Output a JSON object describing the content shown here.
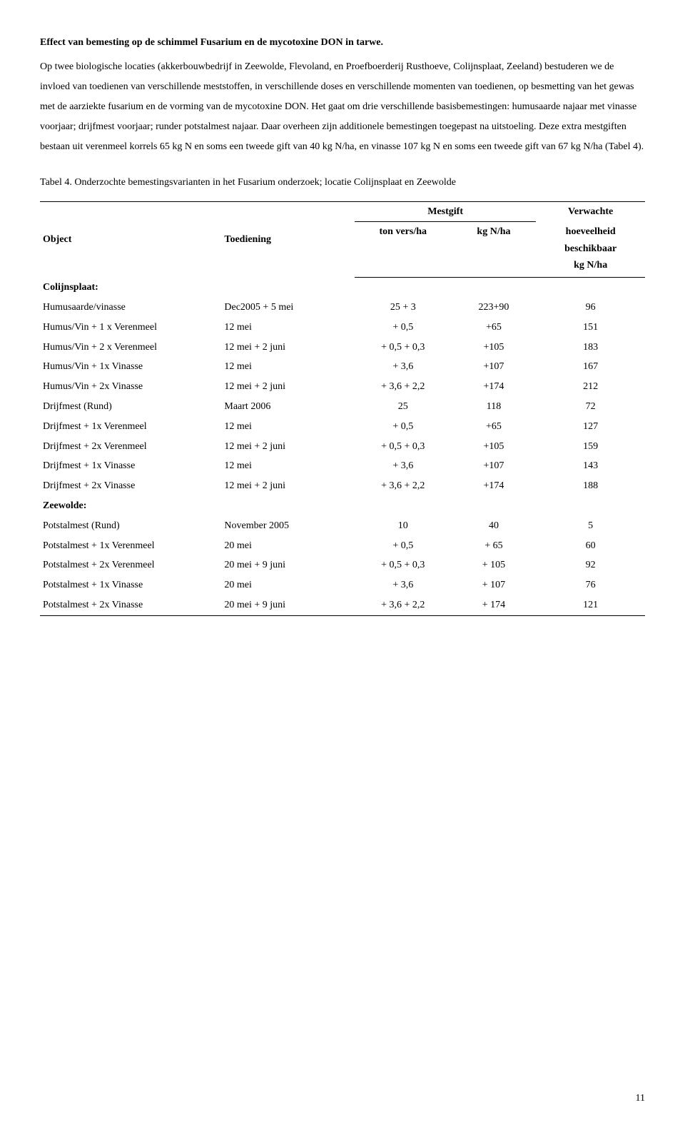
{
  "heading": "Effect van bemesting op de schimmel Fusarium en de mycotoxine DON in tarwe.",
  "body": "Op twee biologische locaties (akkerbouwbedrijf in Zeewolde, Flevoland, en Proefboerderij Rusthoeve, Colijnsplaat, Zeeland) bestuderen we de invloed van toedienen van verschillende meststoffen, in verschillende doses en verschillende momenten van toedienen, op besmetting van het gewas met de aarziekte fusarium en de vorming van de mycotoxine DON. Het gaat om drie verschillende basisbemestingen: humusaarde najaar met vinasse voorjaar; drijfmest voorjaar; runder potstalmest najaar. Daar overheen zijn additionele bemestingen toegepast na uitstoeling. Deze extra mestgiften bestaan uit verenmeel korrels 65 kg N en soms een tweede gift van 40 kg N/ha, en vinasse 107 kg N en soms een tweede gift van 67 kg N/ha (Tabel 4).",
  "table_caption": "Tabel 4. Onderzochte bemestingsvarianten in het Fusarium onderzoek; locatie Colijnsplaat en Zeewolde",
  "headers": {
    "object": "Object",
    "toediening": "Toediening",
    "mestgift": "Mestgift",
    "ton_vers": "ton vers/ha",
    "kg_n_ha": "kg N/ha",
    "verwachte": "Verwachte",
    "hoeveelheid": "hoeveelheid",
    "beschikbaar": "beschikbaar",
    "kg_n_ha2": "kg N/ha"
  },
  "sections": {
    "colijnsplaat": "Colijnsplaat:",
    "zeewolde": "Zeewolde:"
  },
  "rows_c": [
    {
      "obj": "Humusaarde/vinasse",
      "toed": "Dec2005 + 5 mei",
      "mest": "25 + 3",
      "kgn": "223+90",
      "verw": "96"
    },
    {
      "obj": "Humus/Vin + 1 x Verenmeel",
      "toed": "12 mei",
      "mest": "+ 0,5",
      "kgn": "+65",
      "verw": "151"
    },
    {
      "obj": "Humus/Vin + 2 x Verenmeel",
      "toed": "12 mei + 2 juni",
      "mest": "+ 0,5 + 0,3",
      "kgn": "+105",
      "verw": "183"
    },
    {
      "obj": "Humus/Vin + 1x Vinasse",
      "toed": "12 mei",
      "mest": "+ 3,6",
      "kgn": "+107",
      "verw": "167"
    },
    {
      "obj": "Humus/Vin + 2x Vinasse",
      "toed": "12 mei + 2 juni",
      "mest": "+ 3,6 + 2,2",
      "kgn": "+174",
      "verw": "212"
    },
    {
      "obj": "Drijfmest (Rund)",
      "toed": "Maart 2006",
      "mest": "25",
      "kgn": "118",
      "verw": "72"
    },
    {
      "obj": "Drijfmest +  1x Verenmeel",
      "toed": "12 mei",
      "mest": "+ 0,5",
      "kgn": "+65",
      "verw": "127"
    },
    {
      "obj": "Drijfmest + 2x Verenmeel",
      "toed": "12 mei + 2 juni",
      "mest": "+ 0,5 + 0,3",
      "kgn": "+105",
      "verw": "159"
    },
    {
      "obj": "Drijfmest + 1x Vinasse",
      "toed": "12 mei",
      "mest": "+ 3,6",
      "kgn": "+107",
      "verw": "143"
    },
    {
      "obj": "Drijfmest + 2x Vinasse",
      "toed": "12 mei + 2 juni",
      "mest": "+ 3,6 + 2,2",
      "kgn": "+174",
      "verw": "188"
    }
  ],
  "rows_z": [
    {
      "obj": "Potstalmest (Rund)",
      "toed": "November 2005",
      "mest": "10",
      "kgn": "40",
      "verw": "5"
    },
    {
      "obj": "Potstalmest + 1x Verenmeel",
      "toed": "20 mei",
      "mest": "+ 0,5",
      "kgn": "+ 65",
      "verw": "60"
    },
    {
      "obj": "Potstalmest + 2x Verenmeel",
      "toed": "20 mei + 9 juni",
      "mest": "+ 0,5 + 0,3",
      "kgn": "+ 105",
      "verw": "92"
    },
    {
      "obj": "Potstalmest + 1x Vinasse",
      "toed": "20 mei",
      "mest": "+ 3,6",
      "kgn": "+ 107",
      "verw": "76"
    },
    {
      "obj": "Potstalmest + 2x Vinasse",
      "toed": "20 mei + 9 juni",
      "mest": "+ 3,6 + 2,2",
      "kgn": "+ 174",
      "verw": "121"
    }
  ],
  "page_number": "11"
}
